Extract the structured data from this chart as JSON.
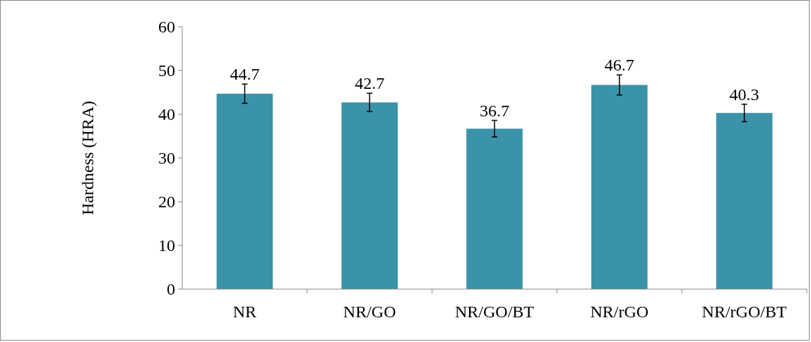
{
  "chart_data": {
    "type": "bar",
    "ylabel": "Hardness (HRA)",
    "categories": [
      "NR",
      "NR/GO",
      "NR/GO/BT",
      "NR/rGO",
      "NR/rGO/BT"
    ],
    "values": [
      44.7,
      42.7,
      36.7,
      46.7,
      40.3
    ],
    "errors": [
      2.2,
      2.1,
      1.9,
      2.3,
      2.0
    ],
    "color": "#3a93a8",
    "ylim": [
      0,
      60
    ],
    "yticks": [
      0,
      10,
      20,
      30,
      40,
      50,
      60
    ],
    "data_labels": true,
    "grid": false
  }
}
